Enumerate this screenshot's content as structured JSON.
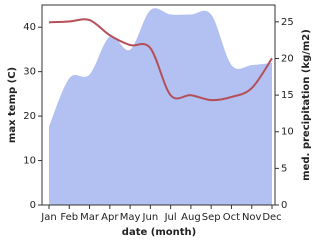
{
  "chart_data": {
    "type": "line_area",
    "x_label": "date (month)",
    "y_label": "max temp (C)",
    "y2_label": "med. precipitation (kg/m2)",
    "categories": [
      "Jan",
      "Feb",
      "Mar",
      "Apr",
      "May",
      "Jun",
      "Jul",
      "Aug",
      "Sep",
      "Oct",
      "Nov",
      "Dec"
    ],
    "series": [
      {
        "name": "max temp",
        "type": "line",
        "color": "#b5505a",
        "values": [
          41.1,
          41.3,
          41.6,
          38.2,
          36.0,
          35.3,
          24.7,
          24.7,
          23.6,
          24.3,
          26.3,
          33.0
        ]
      },
      {
        "name": "med. precipitation",
        "type": "area",
        "axis": "y2",
        "color": "#b3c0f2",
        "values": [
          10.7,
          17.3,
          17.8,
          23.0,
          21.2,
          26.6,
          26.0,
          26.0,
          26.0,
          19.1,
          19.1,
          19.4
        ]
      }
    ],
    "ylim": [
      0,
      45
    ],
    "yticks": [
      0,
      10,
      20,
      30,
      40
    ],
    "y2lim": [
      0,
      27.3
    ],
    "y2ticks": [
      0,
      5,
      10,
      15,
      20,
      25
    ]
  }
}
